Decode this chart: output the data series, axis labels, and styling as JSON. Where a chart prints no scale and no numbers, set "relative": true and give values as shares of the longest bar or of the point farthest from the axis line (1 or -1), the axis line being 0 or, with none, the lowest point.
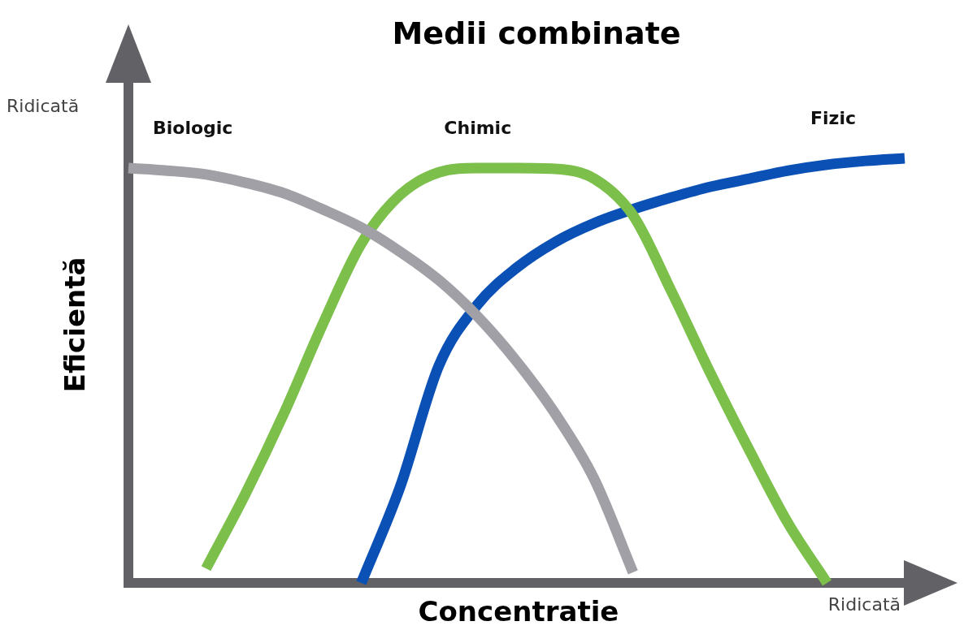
{
  "chart_data": {
    "type": "line",
    "title": "Medii combinate",
    "xlabel": "Concentratie",
    "ylabel": "Eficientă",
    "relative": true,
    "legend": false,
    "marker": "none",
    "line_style": "solid",
    "grid": false,
    "tick_labels": false,
    "annotations": [
      "Ridicată",
      "Ridicată"
    ],
    "categories": [
      null,
      null,
      null,
      null,
      null,
      null,
      null,
      null,
      null,
      null,
      null,
      null,
      null,
      null,
      null,
      null,
      null,
      null,
      null,
      null,
      null
    ],
    "series": [
      {
        "name": "Biologic",
        "color": "#a0a0a6",
        "values": [
          0.977,
          0.971,
          0.962,
          0.943,
          0.918,
          0.88,
          0.837,
          0.78,
          0.713,
          0.627,
          0.522,
          0.398,
          0.245,
          0.025,
          null,
          null,
          null,
          null,
          null,
          null,
          null
        ]
      },
      {
        "name": "Chimic",
        "color": "#7cc04b",
        "values": [
          null,
          null,
          0.034,
          0.207,
          0.398,
          0.608,
          0.799,
          0.914,
          0.967,
          0.977,
          0.977,
          0.975,
          0.952,
          0.866,
          0.685,
          0.493,
          0.312,
          0.14,
          0,
          null,
          null
        ]
      },
      {
        "name": "Fizic",
        "color": "#0a50b5",
        "values": [
          null,
          null,
          null,
          null,
          null,
          null,
          0,
          0.226,
          0.512,
          0.656,
          0.742,
          0.803,
          0.847,
          0.88,
          0.908,
          0.933,
          0.952,
          0.971,
          0.985,
          0.994,
          1
        ]
      }
    ]
  }
}
